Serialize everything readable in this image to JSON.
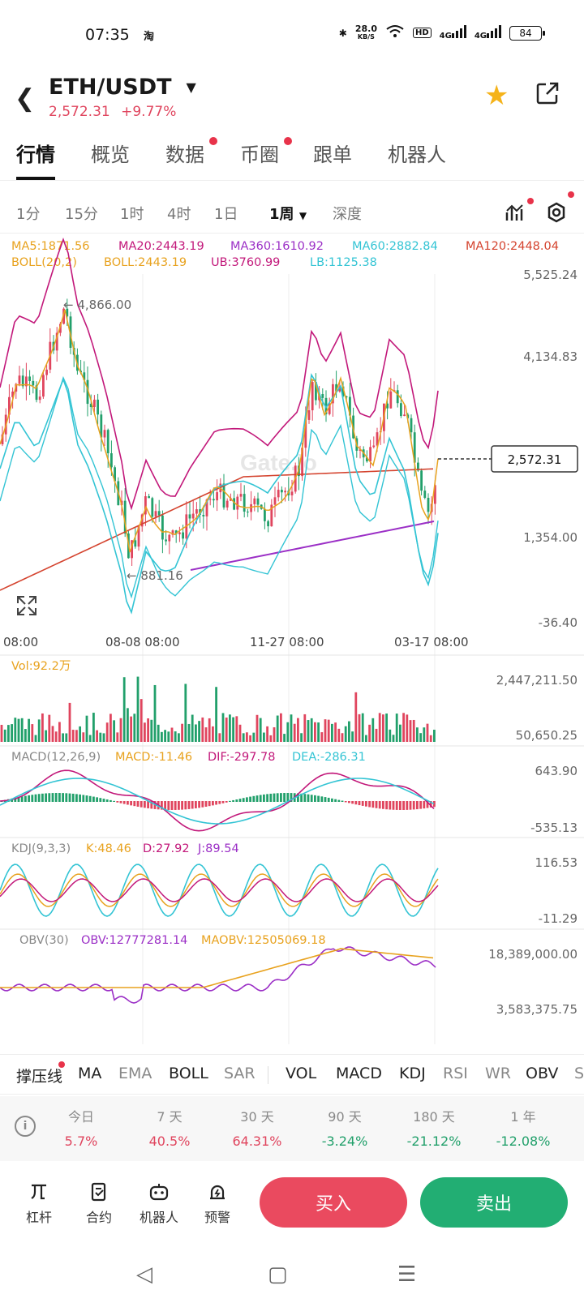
{
  "status": {
    "time": "07:35",
    "app_icon": "淘",
    "net_speed": "28.0",
    "net_unit": "KB/S",
    "hd": "HD",
    "sig1": "4G",
    "sig2": "4G",
    "battery": "84"
  },
  "header": {
    "pair": "ETH/USDT",
    "price": "2,572.31",
    "change": "+9.77%"
  },
  "tabs": [
    "行情",
    "概览",
    "数据",
    "币圈",
    "跟单",
    "机器人"
  ],
  "intervals": [
    "1分",
    "15分",
    "1时",
    "4时",
    "1日",
    "1周",
    "深度"
  ],
  "active_interval": "1周",
  "ma_legend": {
    "ma5": "MA5:1871.56",
    "ma20": "MA20:2443.19",
    "ma360": "MA360:1610.92",
    "ma60": "MA60:2882.84",
    "ma120": "MA120:2448.04",
    "boll": "BOLL(20,2)",
    "boll_val": "BOLL:2443.19",
    "ub": "UB:3760.99",
    "lb": "LB:1125.38"
  },
  "main_chart": {
    "y_ticks": [
      "5,525.24",
      "4,134.83",
      "1,354.00",
      "-36.40"
    ],
    "high_label": "← 4,866.00",
    "low_label": "← 881.16",
    "current_price": "2,572.31",
    "x_ticks": [
      "08:00",
      "08-08 08:00",
      "11-27 08:00",
      "03-17 08:00"
    ],
    "watermark": "Gate.io"
  },
  "volume": {
    "label": "Vol:92.2万",
    "y_ticks": [
      "2,447,211.50",
      "50,650.25"
    ]
  },
  "macd": {
    "label": "MACD(12,26,9)",
    "macd": "MACD:-11.46",
    "dif": "DIF:-297.78",
    "dea": "DEA:-286.31",
    "y_ticks": [
      "643.90",
      "-535.13"
    ]
  },
  "kdj": {
    "label": "KDJ(9,3,3)",
    "k": "K:48.46",
    "d": "D:27.92",
    "j": "J:89.54",
    "y_ticks": [
      "116.53",
      "-11.29"
    ]
  },
  "obv": {
    "label": "OBV(30)",
    "obv": "OBV:12777281.14",
    "maobv": "MAOBV:12505069.18",
    "y_ticks": [
      "18,389,000.00",
      "3,583,375.75"
    ]
  },
  "indicators": [
    "撑压线",
    "MA",
    "EMA",
    "BOLL",
    "SAR",
    "VOL",
    "MACD",
    "KDJ",
    "RSI",
    "WR",
    "OBV",
    "S"
  ],
  "performance": [
    {
      "label": "今日",
      "value": "5.7%"
    },
    {
      "label": "7 天",
      "value": "40.5%"
    },
    {
      "label": "30 天",
      "value": "64.31%"
    },
    {
      "label": "90 天",
      "value": "-3.24%"
    },
    {
      "label": "180 天",
      "value": "-21.12%"
    },
    {
      "label": "1 年",
      "value": "-12.08%"
    }
  ],
  "bottom": {
    "leverage": "杠杆",
    "contract": "合约",
    "robot": "机器人",
    "alert": "预警",
    "buy": "买入",
    "sell": "卖出"
  },
  "colors": {
    "up": "#e0455e",
    "down": "#22a06b",
    "ma5": "#e8a21e",
    "ma20": "#c2187a",
    "ma360": "#9b2fc6",
    "ma60": "#33c4d4",
    "ma120": "#d4432e"
  }
}
